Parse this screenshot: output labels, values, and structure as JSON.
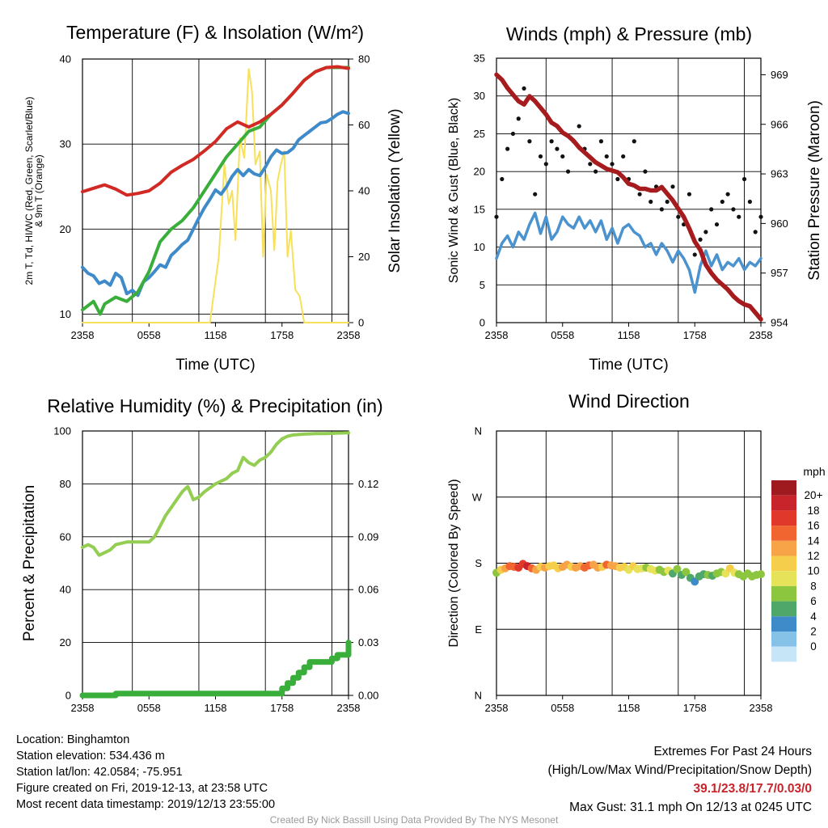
{
  "chart_data": [
    {
      "id": "temperature",
      "type": "line",
      "title": "Temperature (F) & Insolation (W/m²)",
      "xlabel": "Time (UTC)",
      "ylabel_lines": [
        "2m T, Td, HI/WC (Red, Green, Scarlet/Blue)",
        "& 9m T (Orange)"
      ],
      "y2label": "Solar Insolation (Yellow)",
      "x_ticks": [
        "2358",
        "0558",
        "1158",
        "1758",
        "2358"
      ],
      "ylim": [
        9,
        40
      ],
      "y_ticks": [
        10,
        20,
        30,
        40
      ],
      "y2lim": [
        0,
        80
      ],
      "y2_ticks": [
        0,
        20,
        40,
        60,
        80
      ],
      "colors": {
        "temp": "#d12a25",
        "nine_m": "#f29a3c",
        "dewpoint": "#3aae3a",
        "windchill": "#3f8bc9",
        "solar": "#f7e05a"
      },
      "series": [
        {
          "key": "temp",
          "hours": [
            0,
            1,
            2,
            3,
            4,
            5,
            6,
            7,
            8,
            9,
            10,
            11,
            12,
            13,
            14,
            15,
            16,
            17,
            18,
            19,
            20,
            21,
            22,
            23,
            24
          ],
          "values": [
            24.4,
            24.8,
            25.2,
            24.7,
            24.0,
            24.2,
            24.5,
            25.4,
            26.7,
            27.5,
            28.2,
            29.2,
            30.3,
            31.8,
            32.6,
            32.0,
            32.6,
            33.5,
            34.6,
            36.0,
            37.5,
            38.5,
            39.0,
            39.1,
            38.9
          ]
        },
        {
          "key": "dewpoint",
          "hours": [
            0,
            1,
            1.6,
            2,
            3,
            4,
            5,
            6,
            7,
            8,
            9,
            10,
            11,
            12,
            13,
            14,
            15,
            16,
            17,
            18,
            19,
            20,
            21,
            22,
            23,
            24
          ],
          "values": [
            10.5,
            11.5,
            10.0,
            11.2,
            12.0,
            11.5,
            12.6,
            15.0,
            18.5,
            20.0,
            21.0,
            22.5,
            24.5,
            26.5,
            28.5,
            30.0,
            31.5,
            32.0,
            33.5,
            34.6,
            36.0,
            37.5,
            38.5,
            39.0,
            39.0,
            39.0
          ]
        },
        {
          "key": "windchill",
          "hours": [
            0,
            0.5,
            1,
            1.5,
            2,
            2.5,
            3,
            3.5,
            4,
            4.5,
            5,
            5.5,
            6,
            6.5,
            7,
            7.5,
            8,
            8.5,
            9,
            9.5,
            10,
            10.5,
            11,
            11.5,
            12,
            12.5,
            13,
            13.5,
            14,
            14.5,
            15,
            15.5,
            16,
            16.5,
            17,
            17.5,
            18,
            18.5,
            19,
            19.5,
            20,
            20.5,
            21,
            21.5,
            22,
            22.5,
            23,
            23.5,
            24
          ],
          "values": [
            15.5,
            14.8,
            14.5,
            13.6,
            13.9,
            13.4,
            14.8,
            14.3,
            12.4,
            12.8,
            12.2,
            13.8,
            14.3,
            15.0,
            15.8,
            15.5,
            16.9,
            17.5,
            18.2,
            18.7,
            20.0,
            21.3,
            22.5,
            23.5,
            24.6,
            24.1,
            25.0,
            26.2,
            27.0,
            26.3,
            27.0,
            26.5,
            26.3,
            27.3,
            28.5,
            29.3,
            28.9,
            29.0,
            29.5,
            30.5,
            31.0,
            31.5,
            32.0,
            32.5,
            32.6,
            33.0,
            33.5,
            33.8,
            33.6
          ]
        },
        {
          "key": "solar",
          "hours": [
            0,
            6,
            11.5,
            12.3,
            12.8,
            13.2,
            13.5,
            13.8,
            14.2,
            14.6,
            15.0,
            15.3,
            15.6,
            16.0,
            16.3,
            16.6,
            17.0,
            17.3,
            17.6,
            17.9,
            18.2,
            18.5,
            18.8,
            19.2,
            19.6,
            20.0,
            20.5,
            24
          ],
          "values": [
            0,
            0,
            0,
            20,
            48,
            36,
            40,
            25,
            56,
            50,
            77,
            70,
            48,
            52,
            20,
            45,
            40,
            22,
            43,
            48,
            52,
            20,
            28,
            10,
            8,
            0,
            0,
            0
          ]
        }
      ]
    },
    {
      "id": "winds",
      "type": "line",
      "title": "Winds (mph) & Pressure (mb)",
      "xlabel": "Time (UTC)",
      "ylabel": "Sonic Wind & Gust (Blue, Black)",
      "y2label": "Station Pressure (Maroon)",
      "x_ticks": [
        "2358",
        "0558",
        "1158",
        "1758",
        "2358"
      ],
      "ylim": [
        0,
        35
      ],
      "y_ticks": [
        0,
        5,
        10,
        15,
        20,
        25,
        30,
        35
      ],
      "y2lim": [
        954,
        970
      ],
      "y2_ticks": [
        954,
        957,
        960,
        963,
        966,
        969
      ],
      "colors": {
        "wind": "#4b93cf",
        "gust": "#111111",
        "pressure": "#a61b1e"
      },
      "series": [
        {
          "key": "pressure",
          "hours": [
            0,
            0.5,
            1,
            1.5,
            2,
            2.5,
            3,
            3.5,
            4,
            4.5,
            5,
            5.5,
            6,
            6.5,
            7,
            7.5,
            8,
            8.5,
            9,
            9.5,
            10,
            10.5,
            11,
            11.5,
            12,
            12.5,
            13,
            13.5,
            14,
            14.5,
            15,
            15.5,
            16,
            16.5,
            17,
            17.5,
            18,
            18.5,
            19,
            19.5,
            20,
            20.5,
            21,
            21.5,
            22,
            22.5,
            23,
            23.5,
            24
          ],
          "values": [
            969.0,
            968.7,
            968.2,
            967.8,
            967.4,
            967.2,
            967.7,
            967.4,
            967.0,
            966.6,
            966.1,
            965.9,
            965.5,
            965.3,
            965.0,
            964.6,
            964.3,
            964.0,
            963.7,
            963.5,
            963.3,
            963.2,
            963.1,
            962.8,
            962.4,
            962.3,
            962.1,
            962.1,
            962.0,
            962.0,
            962.2,
            961.8,
            961.4,
            960.9,
            960.4,
            959.7,
            958.9,
            958.4,
            957.5,
            957.0,
            956.6,
            956.3,
            956.0,
            955.6,
            955.3,
            955.1,
            955.0,
            954.6,
            954.2
          ]
        },
        {
          "key": "wind",
          "hours": [
            0,
            0.5,
            1,
            1.5,
            2,
            2.5,
            3,
            3.5,
            4,
            4.5,
            5,
            5.5,
            6,
            6.5,
            7,
            7.5,
            8,
            8.5,
            9,
            9.5,
            10,
            10.5,
            11,
            11.5,
            12,
            12.5,
            13,
            13.5,
            14,
            14.5,
            15,
            15.5,
            16,
            16.5,
            17,
            17.5,
            18,
            18.5,
            19,
            19.5,
            20,
            20.5,
            21,
            21.5,
            22,
            22.5,
            23,
            23.5,
            24
          ],
          "values": [
            8.5,
            10.5,
            11.5,
            10.0,
            12.0,
            11.0,
            13.0,
            14.5,
            11.8,
            14.0,
            11.0,
            12.0,
            14.0,
            13.0,
            12.5,
            14.0,
            12.5,
            13.5,
            12.0,
            13.5,
            11.0,
            12.5,
            10.5,
            12.5,
            13.0,
            12.0,
            11.5,
            10.0,
            10.5,
            9.0,
            10.5,
            9.5,
            8.0,
            9.5,
            8.5,
            7.0,
            4.0,
            7.5,
            9.5,
            7.5,
            9.0,
            7.0,
            8.0,
            7.5,
            8.5,
            7.0,
            8.0,
            7.5,
            8.5
          ]
        },
        {
          "key": "gust",
          "hours": [
            0,
            0.5,
            1,
            1.5,
            2,
            2.5,
            3,
            3.5,
            4,
            4.5,
            5,
            5.5,
            6,
            6.5,
            7,
            7.5,
            8,
            8.5,
            9,
            9.5,
            10,
            10.5,
            11,
            11.5,
            12,
            12.5,
            13,
            13.5,
            14,
            14.5,
            15,
            15.5,
            16,
            16.5,
            17,
            17.5,
            18,
            18.5,
            19,
            19.5,
            20,
            20.5,
            21,
            21.5,
            22,
            22.5,
            23,
            23.5,
            24
          ],
          "values": [
            14,
            19,
            23,
            25,
            27,
            31,
            24,
            17,
            22,
            21,
            24,
            23,
            22,
            20,
            24,
            26,
            23,
            21,
            20,
            24,
            22,
            21,
            19,
            22,
            19,
            24,
            17,
            20,
            16,
            18,
            15,
            16,
            18,
            14,
            13,
            17,
            9,
            11,
            12,
            15,
            13,
            16,
            17,
            15,
            14,
            19,
            16,
            12,
            14
          ]
        }
      ]
    },
    {
      "id": "humidity",
      "type": "line",
      "title": "Relative Humidity (%) & Precipitation (in)",
      "ylabel": "Percent & Precipitation",
      "x_ticks": [
        "2358",
        "0558",
        "1158",
        "1758",
        "2358"
      ],
      "ylim": [
        0,
        100
      ],
      "y_ticks": [
        0,
        20,
        40,
        60,
        80,
        100
      ],
      "y2lim": [
        0,
        0.15
      ],
      "y2_ticks": [
        "0.00",
        "0.03",
        "0.06",
        "0.09",
        "0.12"
      ],
      "colors": {
        "rh": "#93cd52",
        "precip": "#3aae3a"
      },
      "series": [
        {
          "key": "rh",
          "hours": [
            0,
            0.5,
            1,
            1.5,
            2,
            2.5,
            3,
            4,
            5,
            6,
            6.5,
            7,
            7.5,
            8,
            8.5,
            9,
            9.5,
            10,
            10.5,
            11,
            12,
            12.5,
            13,
            13.5,
            14,
            14.5,
            15,
            15.5,
            16,
            16.5,
            17,
            17.5,
            18,
            18.5,
            19,
            20,
            21,
            22,
            23,
            24
          ],
          "values": [
            56,
            57,
            56,
            53,
            54,
            55,
            57,
            58,
            58,
            58,
            60,
            64,
            68,
            71,
            74,
            77,
            79,
            74,
            75,
            77,
            80,
            81,
            82,
            84,
            85,
            90,
            88,
            87,
            89,
            90,
            92,
            95,
            97,
            98,
            98.5,
            98.8,
            99,
            99,
            99.2,
            99.3
          ]
        },
        {
          "key": "precip",
          "hours": [
            0,
            2.9,
            3.0,
            17.5,
            18.0,
            18.5,
            19.0,
            19.5,
            20.0,
            20.5,
            22.5,
            23.0,
            24
          ],
          "values": [
            0,
            0,
            0.001,
            0.001,
            0.004,
            0.007,
            0.01,
            0.013,
            0.016,
            0.019,
            0.021,
            0.023,
            0.03
          ]
        }
      ]
    },
    {
      "id": "wind_direction",
      "type": "scatter",
      "title": "Wind Direction",
      "ylabel": "Direction (Colored By Speed)",
      "x_ticks": [
        "2358",
        "0558",
        "1158",
        "1758",
        "2358"
      ],
      "y_ticks": [
        "N",
        "E",
        "S",
        "W",
        "N"
      ],
      "ylim": [
        0,
        360
      ],
      "legend_title": "mph",
      "legend_labels": [
        "20+",
        "18",
        "16",
        "14",
        "12",
        "10",
        "8",
        "6",
        "4",
        "2",
        "0"
      ],
      "legend_colors": [
        "#9e1a1f",
        "#c8242b",
        "#e0392b",
        "#f06530",
        "#f7a347",
        "#f5cf4c",
        "#e6e35a",
        "#8cc63f",
        "#4fa86a",
        "#3f8bc9",
        "#86c1e8",
        "#c6e6f7"
      ],
      "hours": [
        0,
        0.4,
        0.8,
        1.2,
        1.6,
        2,
        2.4,
        2.8,
        3.2,
        3.6,
        4,
        4.4,
        4.8,
        5.2,
        5.6,
        6,
        6.4,
        6.8,
        7.2,
        7.6,
        8,
        8.4,
        8.8,
        9.2,
        9.6,
        10,
        10.4,
        10.8,
        11.2,
        11.6,
        12,
        12.4,
        12.8,
        13.2,
        13.6,
        14,
        14.4,
        14.8,
        15.2,
        15.6,
        16,
        16.4,
        16.8,
        17.2,
        17.6,
        18,
        18.4,
        18.8,
        19.2,
        19.6,
        20,
        20.4,
        20.8,
        21.2,
        21.6,
        22,
        22.4,
        22.8,
        23.2,
        23.6,
        24
      ],
      "values": [
        167,
        171,
        173,
        176,
        175,
        174,
        179,
        176,
        173,
        171,
        175,
        174,
        176,
        177,
        173,
        175,
        178,
        175,
        174,
        176,
        174,
        177,
        178,
        174,
        175,
        178,
        177,
        176,
        174,
        175,
        171,
        176,
        172,
        173,
        174,
        172,
        170,
        171,
        168,
        170,
        166,
        172,
        164,
        168,
        160,
        155,
        162,
        165,
        164,
        163,
        166,
        168,
        166,
        173,
        167,
        165,
        162,
        166,
        162,
        164,
        165
      ],
      "speeds": [
        8,
        11,
        13,
        15,
        16,
        17,
        18,
        19,
        16,
        14,
        12,
        13,
        12,
        11,
        12,
        13,
        14,
        12,
        13,
        14,
        15,
        16,
        14,
        13,
        12,
        15,
        14,
        13,
        12,
        11,
        10,
        12,
        10,
        9,
        8,
        10,
        9,
        8,
        7,
        9,
        6,
        7,
        6,
        7,
        6,
        3,
        5,
        6,
        7,
        6,
        7,
        8,
        9,
        11,
        9,
        8,
        7,
        8,
        7,
        8,
        8
      ]
    }
  ],
  "info": {
    "location": "Location: Binghamton",
    "elevation": "Station elevation: 534.436 m",
    "latlon": "Station lat/lon: 42.0584; -75.951",
    "created": "Figure created on Fri, 2019-12-13, at 23:58 UTC",
    "recent": "Most recent data timestamp: 2019/12/13 23:55:00"
  },
  "extremes": {
    "header": "Extremes For Past 24 Hours",
    "subheader": "(High/Low/Max Wind/Precipitation/Snow Depth)",
    "values": "39.1/23.8/17.7/0.03/0",
    "gust": "Max Gust: 31.1 mph On 12/13 at 0245 UTC"
  },
  "credit": "Created By Nick Bassill Using Data Provided By The NYS Mesonet"
}
